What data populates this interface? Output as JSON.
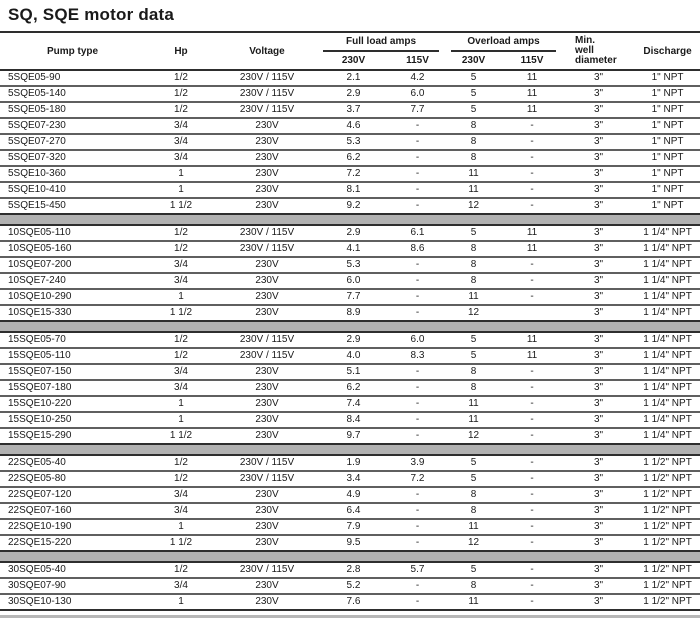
{
  "title": "SQ, SQE motor data",
  "colors": {
    "text": "#1a1a1a",
    "rule_dark": "#2e2e2e",
    "rule_row": "#5f5f5f",
    "separator_fill": "#b1b1b1",
    "background": "#ffffff"
  },
  "table": {
    "headers": {
      "pump_type": "Pump type",
      "hp": "Hp",
      "voltage": "Voltage",
      "full_load_amps": "Full load amps",
      "overload_amps": "Overload amps",
      "fl_230v": "230V",
      "fl_115v": "115V",
      "ol_230v": "230V",
      "ol_115v": "115V",
      "min_well_diameter": "Min.\nwell\ndiameter",
      "discharge": "Discharge"
    },
    "column_names": [
      "cell-pump-type",
      "cell-hp",
      "cell-voltage",
      "cell-full-load-230v",
      "cell-full-load-115v",
      "cell-overload-230v",
      "cell-overload-115v",
      "cell-min-well-diameter",
      "cell-discharge"
    ],
    "groups": [
      {
        "rows": [
          [
            "5SQE05-90",
            "1/2",
            "230V / 115V",
            "2.1",
            "4.2",
            "5",
            "11",
            "3\"",
            "1\" NPT"
          ],
          [
            "5SQE05-140",
            "1/2",
            "230V / 115V",
            "2.9",
            "6.0",
            "5",
            "11",
            "3\"",
            "1\" NPT"
          ],
          [
            "5SQE05-180",
            "1/2",
            "230V / 115V",
            "3.7",
            "7.7",
            "5",
            "11",
            "3\"",
            "1\" NPT"
          ],
          [
            "5SQE07-230",
            "3/4",
            "230V",
            "4.6",
            "-",
            "8",
            "-",
            "3\"",
            "1\" NPT"
          ],
          [
            "5SQE07-270",
            "3/4",
            "230V",
            "5.3",
            "-",
            "8",
            "-",
            "3\"",
            "1\" NPT"
          ],
          [
            "5SQE07-320",
            "3/4",
            "230V",
            "6.2",
            "-",
            "8",
            "-",
            "3\"",
            "1\" NPT"
          ],
          [
            "5SQE10-360",
            "1",
            "230V",
            "7.2",
            "-",
            "11",
            "-",
            "3\"",
            "1\" NPT"
          ],
          [
            "5SQE10-410",
            "1",
            "230V",
            "8.1",
            "-",
            "11",
            "-",
            "3\"",
            "1\" NPT"
          ],
          [
            "5SQE15-450",
            "1 1/2",
            "230V",
            "9.2",
            "-",
            "12",
            "-",
            "3\"",
            "1\" NPT"
          ]
        ]
      },
      {
        "rows": [
          [
            "10SQE05-110",
            "1/2",
            "230V / 115V",
            "2.9",
            "6.1",
            "5",
            "11",
            "3\"",
            "1 1/4\" NPT"
          ],
          [
            "10SQE05-160",
            "1/2",
            "230V / 115V",
            "4.1",
            "8.6",
            "8",
            "11",
            "3\"",
            "1 1/4\" NPT"
          ],
          [
            "10SQE07-200",
            "3/4",
            "230V",
            "5.3",
            "-",
            "8",
            "-",
            "3\"",
            "1 1/4\" NPT"
          ],
          [
            "10SQE7-240",
            "3/4",
            "230V",
            "6.0",
            "-",
            "8",
            "-",
            "3\"",
            "1 1/4\" NPT"
          ],
          [
            "10SQE10-290",
            "1",
            "230V",
            "7.7",
            "-",
            "11",
            "-",
            "3\"",
            "1 1/4\" NPT"
          ],
          [
            "10SQE15-330",
            "1 1/2",
            "230V",
            "8.9",
            "-",
            "12",
            "",
            "3\"",
            "1 1/4\" NPT"
          ]
        ]
      },
      {
        "rows": [
          [
            "15SQE05-70",
            "1/2",
            "230V / 115V",
            "2.9",
            "6.0",
            "5",
            "11",
            "3\"",
            "1 1/4\" NPT"
          ],
          [
            "15SQE05-110",
            "1/2",
            "230V / 115V",
            "4.0",
            "8.3",
            "5",
            "11",
            "3\"",
            "1 1/4\" NPT"
          ],
          [
            "15SQE07-150",
            "3/4",
            "230V",
            "5.1",
            "-",
            "8",
            "-",
            "3\"",
            "1 1/4\" NPT"
          ],
          [
            "15SQE07-180",
            "3/4",
            "230V",
            "6.2",
            "-",
            "8",
            "-",
            "3\"",
            "1 1/4\" NPT"
          ],
          [
            "15SQE10-220",
            "1",
            "230V",
            "7.4",
            "-",
            "11",
            "-",
            "3\"",
            "1 1/4\" NPT"
          ],
          [
            "15SQE10-250",
            "1",
            "230V",
            "8.4",
            "-",
            "11",
            "-",
            "3\"",
            "1 1/4\" NPT"
          ],
          [
            "15SQE15-290",
            "1 1/2",
            "230V",
            "9.7",
            "-",
            "12",
            "-",
            "3\"",
            "1 1/4\" NPT"
          ]
        ]
      },
      {
        "rows": [
          [
            "22SQE05-40",
            "1/2",
            "230V / 115V",
            "1.9",
            "3.9",
            "5",
            "-",
            "3\"",
            "1 1/2\" NPT"
          ],
          [
            "22SQE05-80",
            "1/2",
            "230V / 115V",
            "3.4",
            "7.2",
            "5",
            "-",
            "3\"",
            "1 1/2\" NPT"
          ],
          [
            "22SQE07-120",
            "3/4",
            "230V",
            "4.9",
            "-",
            "8",
            "-",
            "3\"",
            "1 1/2\" NPT"
          ],
          [
            "22SQE07-160",
            "3/4",
            "230V",
            "6.4",
            "-",
            "8",
            "-",
            "3\"",
            "1 1/2\" NPT"
          ],
          [
            "22SQE10-190",
            "1",
            "230V",
            "7.9",
            "-",
            "11",
            "-",
            "3\"",
            "1 1/2\" NPT"
          ],
          [
            "22SQE15-220",
            "1 1/2",
            "230V",
            "9.5",
            "-",
            "12",
            "-",
            "3\"",
            "1 1/2\" NPT"
          ]
        ]
      },
      {
        "rows": [
          [
            "30SQE05-40",
            "1/2",
            "230V / 115V",
            "2.8",
            "5.7",
            "5",
            "-",
            "3\"",
            "1 1/2\" NPT"
          ],
          [
            "30SQE07-90",
            "3/4",
            "230V",
            "5.2",
            "-",
            "8",
            "-",
            "3\"",
            "1 1/2\" NPT"
          ],
          [
            "30SQE10-130",
            "1",
            "230V",
            "7.6",
            "-",
            "11",
            "-",
            "3\"",
            "1 1/2\" NPT"
          ]
        ]
      }
    ]
  }
}
